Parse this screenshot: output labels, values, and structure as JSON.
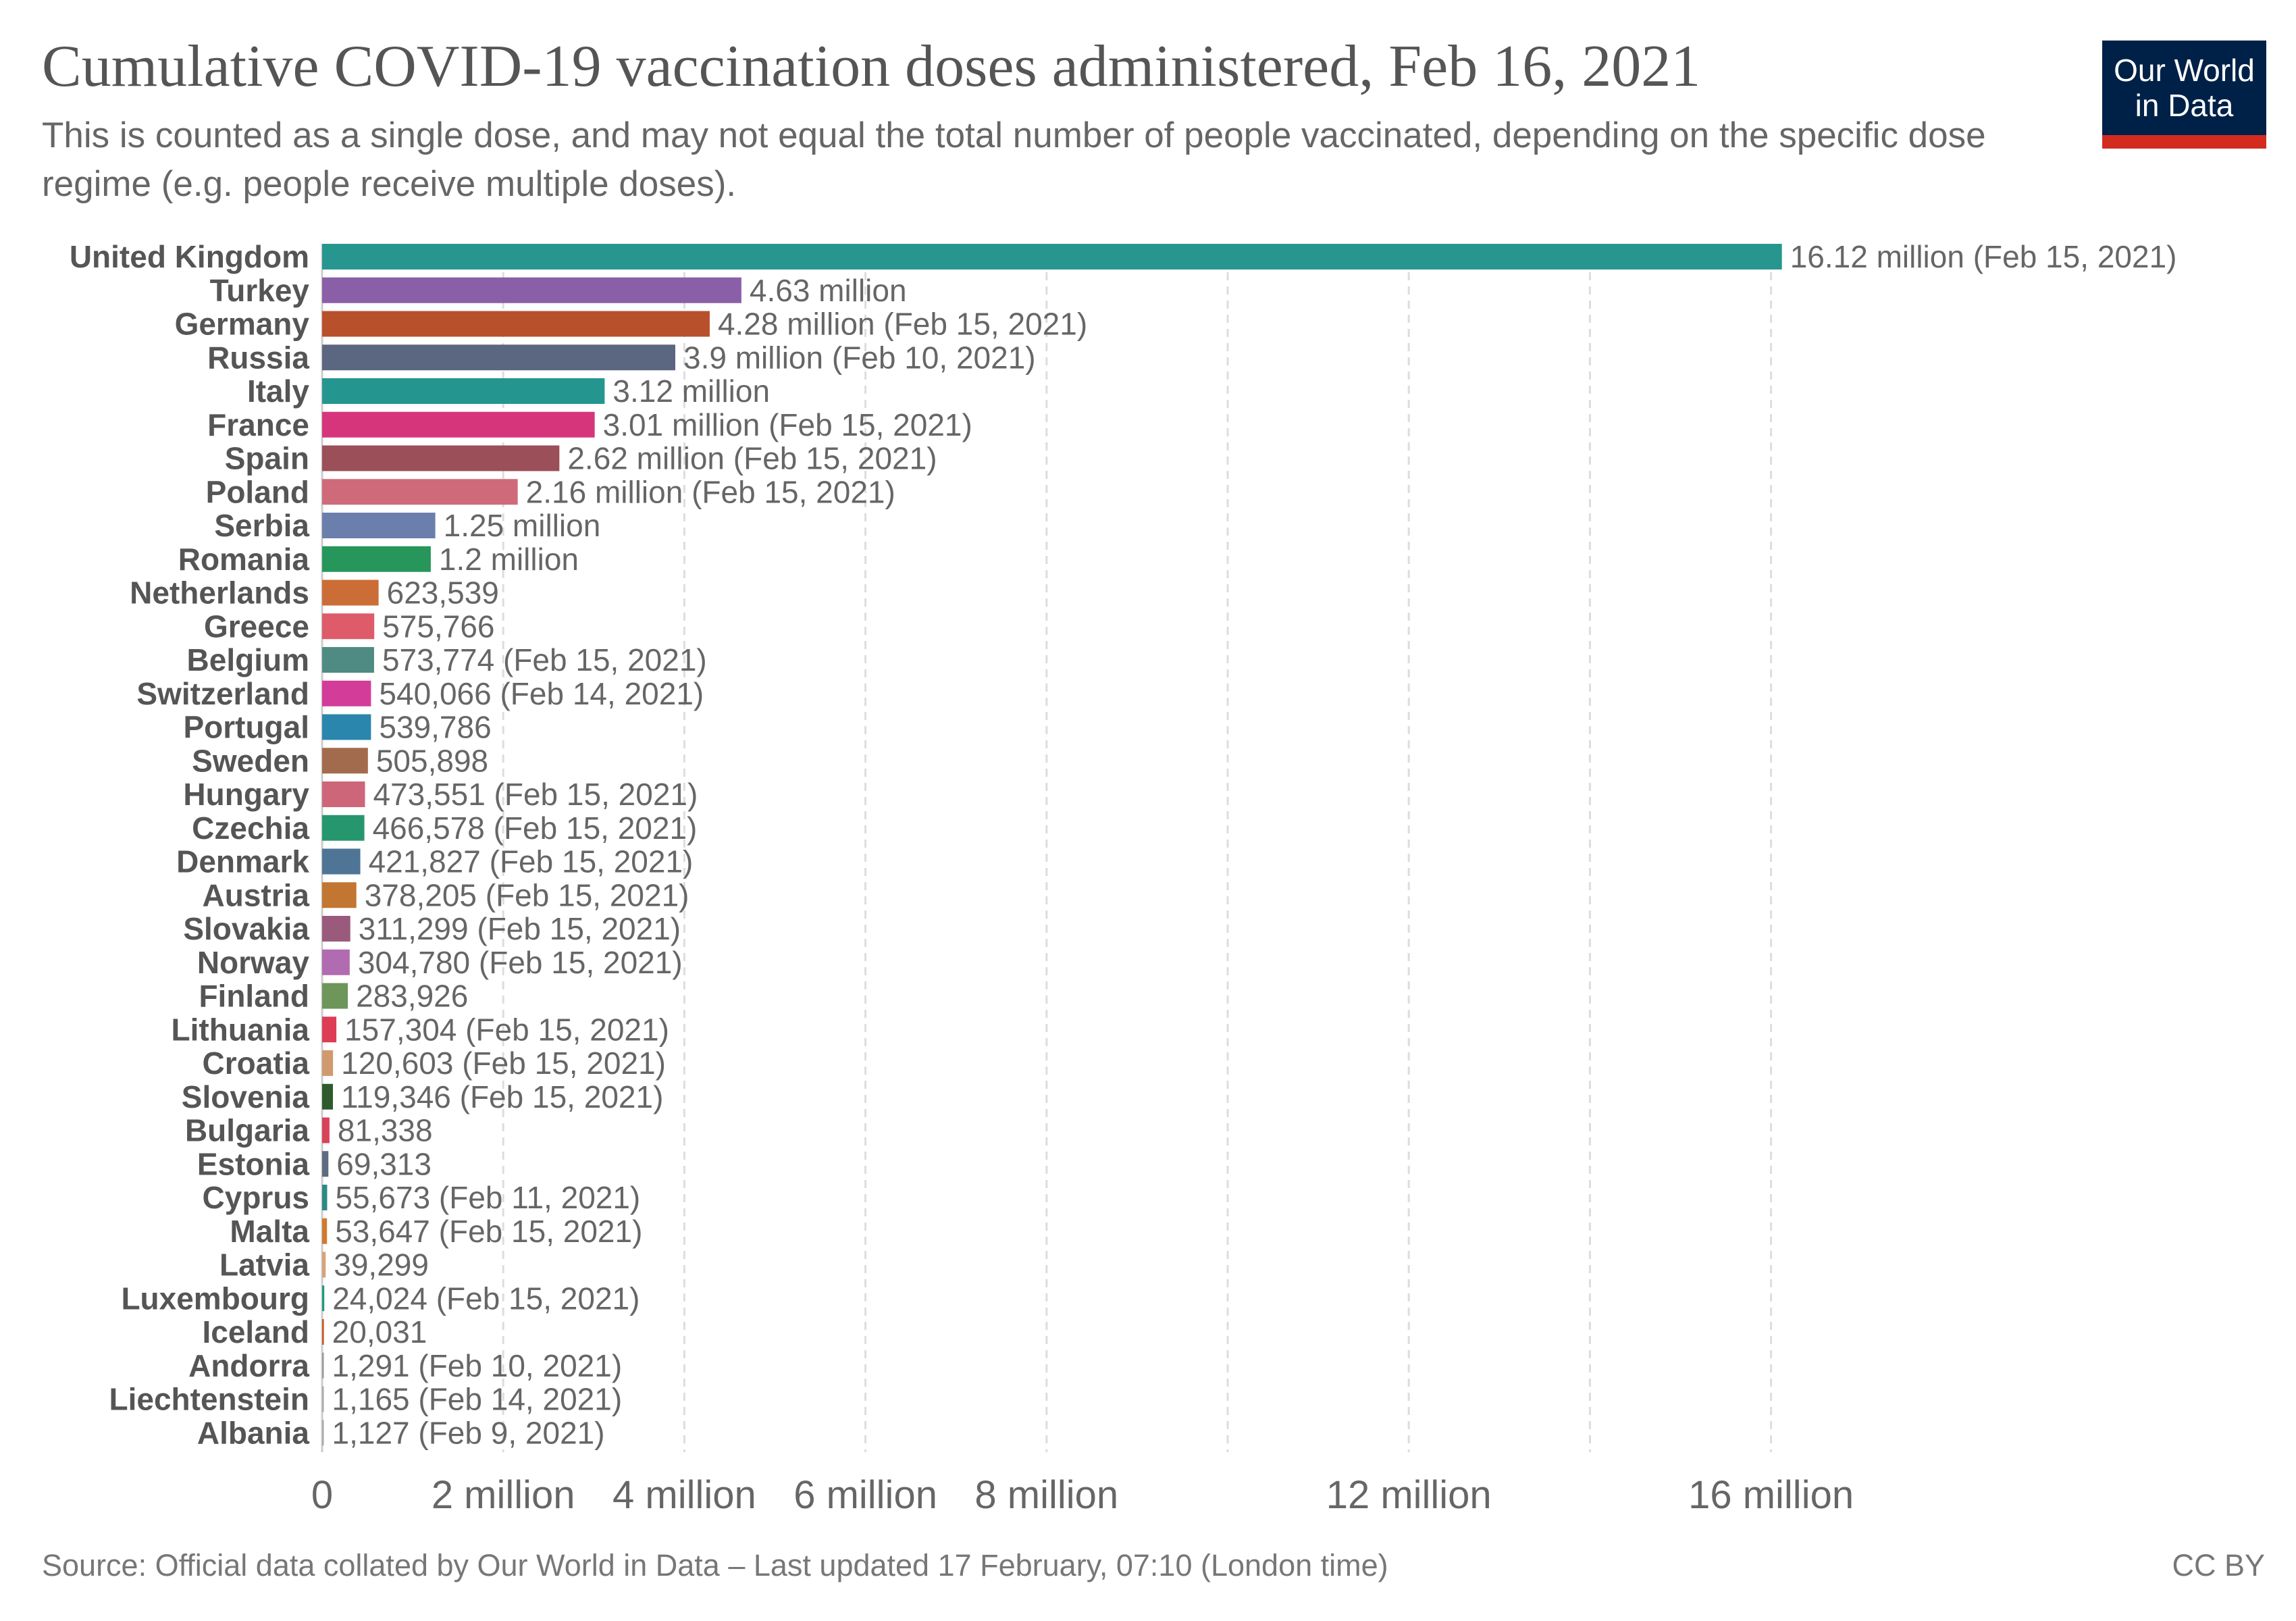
{
  "header": {
    "title": "Cumulative COVID-19 vaccination doses administered, Feb 16, 2021",
    "subtitle": "This is counted as a single dose, and may not equal the total number of people vaccinated, depending on the specific dose regime (e.g. people receive multiple doses).",
    "logo_line1": "Our World",
    "logo_line2": "in Data"
  },
  "footer": {
    "source": "Source: Official data collated by Our World in Data – Last updated 17 February, 07:10 (London time)",
    "license": "CC BY"
  },
  "chart_data": {
    "type": "bar",
    "orientation": "horizontal",
    "title": "Cumulative COVID-19 vaccination doses administered, Feb 16, 2021",
    "xlabel": "",
    "ylabel": "",
    "xlim": [
      0,
      16.12
    ],
    "unit": "million doses",
    "gridlines": [
      2,
      4,
      6,
      8,
      10,
      12,
      14,
      16
    ],
    "ticks": [
      {
        "v": 0,
        "label": "0"
      },
      {
        "v": 2,
        "label": "2 million"
      },
      {
        "v": 4,
        "label": "4 million"
      },
      {
        "v": 6,
        "label": "6 million"
      },
      {
        "v": 8,
        "label": "8 million"
      },
      {
        "v": 12,
        "label": "12 million"
      },
      {
        "v": 16,
        "label": "16 million"
      }
    ],
    "categories": [
      "United Kingdom",
      "Turkey",
      "Germany",
      "Russia",
      "Italy",
      "France",
      "Spain",
      "Poland",
      "Serbia",
      "Romania",
      "Netherlands",
      "Greece",
      "Belgium",
      "Switzerland",
      "Portugal",
      "Sweden",
      "Hungary",
      "Czechia",
      "Denmark",
      "Austria",
      "Slovakia",
      "Norway",
      "Finland",
      "Lithuania",
      "Croatia",
      "Slovenia",
      "Bulgaria",
      "Estonia",
      "Cyprus",
      "Malta",
      "Latvia",
      "Luxembourg",
      "Iceland",
      "Andorra",
      "Liechtenstein",
      "Albania"
    ],
    "values": [
      16.12,
      4.63,
      4.28,
      3.9,
      3.12,
      3.01,
      2.62,
      2.16,
      1.25,
      1.2,
      0.623539,
      0.575766,
      0.573774,
      0.540066,
      0.539786,
      0.505898,
      0.473551,
      0.466578,
      0.421827,
      0.378205,
      0.311299,
      0.30478,
      0.283926,
      0.157304,
      0.120603,
      0.119346,
      0.081338,
      0.069313,
      0.055673,
      0.053647,
      0.039299,
      0.024024,
      0.020031,
      0.001291,
      0.001165,
      0.001127
    ],
    "value_labels": [
      "16.12 million (Feb 15, 2021)",
      "4.63 million",
      "4.28 million (Feb 15, 2021)",
      "3.9 million (Feb 10, 2021)",
      "3.12 million",
      "3.01 million (Feb 15, 2021)",
      "2.62 million (Feb 15, 2021)",
      "2.16 million (Feb 15, 2021)",
      "1.25 million",
      "1.2 million",
      "623,539",
      "575,766",
      "573,774 (Feb 15, 2021)",
      "540,066 (Feb 14, 2021)",
      "539,786",
      "505,898",
      "473,551 (Feb 15, 2021)",
      "466,578 (Feb 15, 2021)",
      "421,827 (Feb 15, 2021)",
      "378,205 (Feb 15, 2021)",
      "311,299 (Feb 15, 2021)",
      "304,780 (Feb 15, 2021)",
      "283,926",
      "157,304 (Feb 15, 2021)",
      "120,603 (Feb 15, 2021)",
      "119,346 (Feb 15, 2021)",
      "81,338",
      "69,313",
      "55,673 (Feb 11, 2021)",
      "53,647 (Feb 15, 2021)",
      "39,299",
      "24,024 (Feb 15, 2021)",
      "20,031",
      "1,291 (Feb 10, 2021)",
      "1,165 (Feb 14, 2021)",
      "1,127 (Feb 9, 2021)"
    ],
    "colors": [
      "#26968f",
      "#8a5fa8",
      "#b9502c",
      "#5b6680",
      "#25968f",
      "#d6357c",
      "#9b4f58",
      "#cf6a7b",
      "#6a7fab",
      "#26965a",
      "#cc6d37",
      "#de5b6a",
      "#4f8b82",
      "#d43c99",
      "#2a86ac",
      "#a36b4d",
      "#cd6679",
      "#26966f",
      "#4f7596",
      "#c27631",
      "#9a5a7c",
      "#b16bb0",
      "#6e955a",
      "#dd3c55",
      "#d09a6e",
      "#2e5a2d",
      "#d9435a",
      "#5e6b80",
      "#2b8a84",
      "#d07a2e",
      "#d9a27a",
      "#1f9a7e",
      "#c95b2a",
      "#999999",
      "#aaaaaa",
      "#aaaaaa"
    ]
  }
}
